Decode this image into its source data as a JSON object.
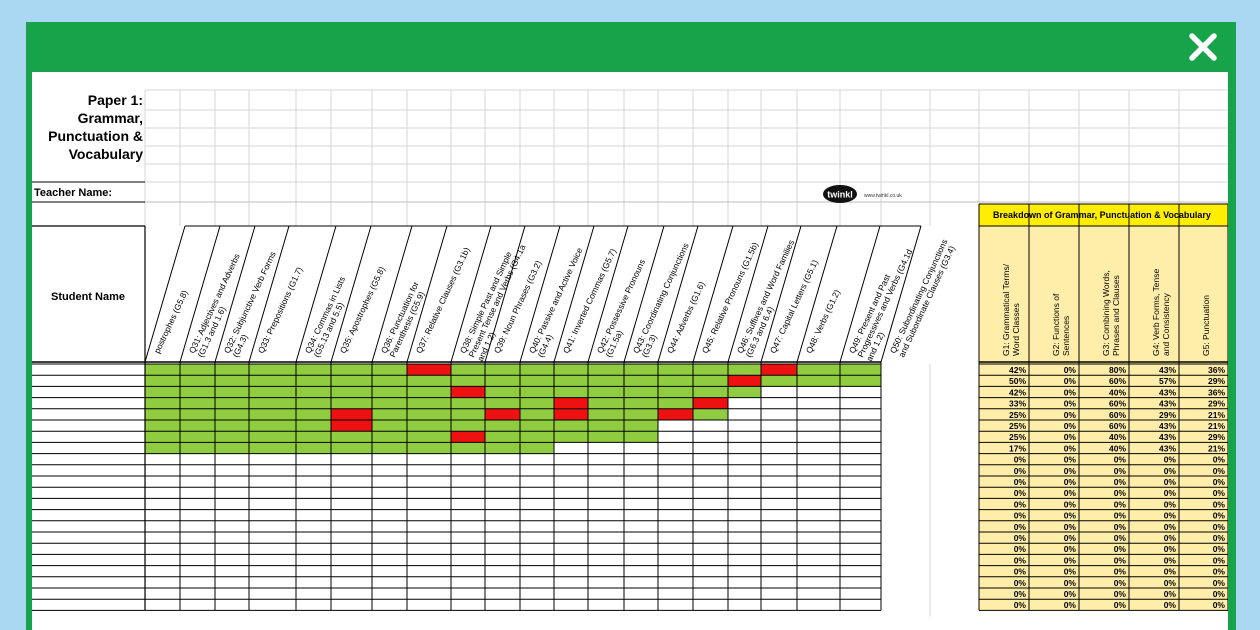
{
  "paper": {
    "title_lines": [
      "Paper 1:",
      "Grammar,",
      "Punctuation &",
      "Vocabulary"
    ],
    "teacher_label": "Teacher Name:",
    "student_header": "Student Name"
  },
  "logo": {
    "name": "twinkl",
    "url": "www.twinkl.co.uk"
  },
  "summary": {
    "header": "Breakdown of Grammar, Punctuation & Vocabulary",
    "columns": [
      "G1: Grammatical Terms/ Word Classes",
      "G2: Functions of Sentences",
      "G3: Combining Words, Phrases and Clauses",
      "G4: Verb Forms, Tense and Consistency",
      "G5: Punctuation"
    ],
    "rows": [
      [
        "42%",
        "0%",
        "80%",
        "43%",
        "36%"
      ],
      [
        "50%",
        "0%",
        "60%",
        "57%",
        "29%"
      ],
      [
        "42%",
        "0%",
        "40%",
        "43%",
        "36%"
      ],
      [
        "33%",
        "0%",
        "60%",
        "43%",
        "29%"
      ],
      [
        "25%",
        "0%",
        "60%",
        "29%",
        "21%"
      ],
      [
        "25%",
        "0%",
        "60%",
        "43%",
        "21%"
      ],
      [
        "25%",
        "0%",
        "40%",
        "43%",
        "29%"
      ],
      [
        "17%",
        "0%",
        "40%",
        "43%",
        "21%"
      ],
      [
        "0%",
        "0%",
        "0%",
        "0%",
        "0%"
      ],
      [
        "0%",
        "0%",
        "0%",
        "0%",
        "0%"
      ],
      [
        "0%",
        "0%",
        "0%",
        "0%",
        "0%"
      ],
      [
        "0%",
        "0%",
        "0%",
        "0%",
        "0%"
      ],
      [
        "0%",
        "0%",
        "0%",
        "0%",
        "0%"
      ],
      [
        "0%",
        "0%",
        "0%",
        "0%",
        "0%"
      ],
      [
        "0%",
        "0%",
        "0%",
        "0%",
        "0%"
      ],
      [
        "0%",
        "0%",
        "0%",
        "0%",
        "0%"
      ],
      [
        "0%",
        "0%",
        "0%",
        "0%",
        "0%"
      ],
      [
        "0%",
        "0%",
        "0%",
        "0%",
        "0%"
      ],
      [
        "0%",
        "0%",
        "0%",
        "0%",
        "0%"
      ],
      [
        "0%",
        "0%",
        "0%",
        "0%",
        "0%"
      ],
      [
        "0%",
        "0%",
        "0%",
        "0%",
        "0%"
      ],
      [
        "0%",
        "0%",
        "0%",
        "0%",
        "0%"
      ]
    ]
  },
  "questions": [
    [
      "postrophes (G5.8)"
    ],
    [
      "Q31: Adjectives and Adverbs",
      "(G1.3 and 1.6)"
    ],
    [
      "Q32: Subjunctive Verb Forms",
      "(G4.3)"
    ],
    [
      "Q33: Prepositions (G1.7)"
    ],
    [
      "Q34: Commas in Lists",
      "(G5.13 and 5.5)"
    ],
    [
      "Q35: Apostrophes (G5.8)"
    ],
    [
      "Q36: Punctuation for",
      "Parenthesis (G5.9)"
    ],
    [
      "Q37: Relative Clauses (G3.1b)"
    ],
    [
      "Q38: Simple Past and Simple",
      "Present Tense and Verbs (G4.1a",
      "and 1.2)"
    ],
    [
      "Q39: Noun Phrases (G3.2)"
    ],
    [
      "Q40: Passive and Active Voice",
      "(G4.4)"
    ],
    [
      "Q41: Inverted Commas (G5.7)"
    ],
    [
      "Q42: Possessive Pronouns",
      "(G1.5a)"
    ],
    [
      "Q43: Coordinating Conjunctions",
      "(G3.3)"
    ],
    [
      "Q44: Adverbs (G1.6)"
    ],
    [
      "Q45: Relative Pronouns (G1.5b)"
    ],
    [
      "Q46: Suffixes and Word Families",
      "(G6.3 and 6.4)"
    ],
    [
      "Q47: Capital Letters (G5.1)"
    ],
    [
      "Q48: Verbs (G1.2)"
    ],
    [
      "Q49: Present and Past",
      "Progressives and Verbs (G4.1d",
      "and 1.2)"
    ],
    [
      "Q50: Subordinating Conjunctions",
      "and Subordinate Clauses (G3.4)"
    ]
  ],
  "colors": {
    "frame_green": "#16a34a",
    "cell_green": "#8fcc3f",
    "cell_red": "#ee1111",
    "summary_fill": "#ffeeaa",
    "summary_header": "#ffee00",
    "page_background": "#aad8f2"
  },
  "results": [
    "GGGGGGGRGGGGGGGGGRGG",
    "GGGGGGGGGGGGGGGGRGGG",
    "GGGGGGGGRGGGGGGGG",
    "GGGGGGGGGGGRGGGR",
    "GGGGGRGGGRGRGGRG",
    "GGGGGRGGGGGGGG",
    "GGGGGGGGRGGGGG",
    "GGGGGGGGGGG"
  ]
}
